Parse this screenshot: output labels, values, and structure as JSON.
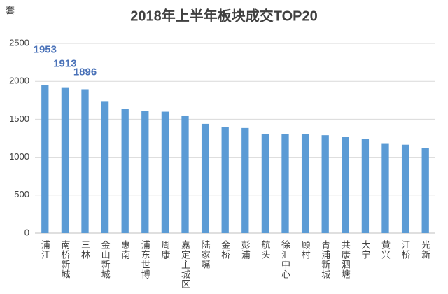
{
  "chart_data": {
    "type": "bar",
    "title": "2018年上半年板块成交TOP20",
    "y_label": "套",
    "categories": [
      "浦江",
      "南桥新城",
      "三林",
      "金山新城",
      "惠南",
      "浦东世博",
      "周康",
      "嘉定主城区",
      "陆家嘴",
      "金桥",
      "彭浦",
      "航头",
      "徐汇中心",
      "顾村",
      "青浦新城",
      "共康泗塘",
      "大宁",
      "黄兴",
      "江桥",
      "光新"
    ],
    "values": [
      1953,
      1913,
      1896,
      1740,
      1640,
      1610,
      1600,
      1550,
      1440,
      1395,
      1385,
      1310,
      1305,
      1305,
      1290,
      1270,
      1240,
      1185,
      1165,
      1125
    ],
    "value_labels": [
      "1953",
      "1913",
      "1896",
      null,
      null,
      null,
      null,
      null,
      null,
      null,
      null,
      null,
      null,
      null,
      null,
      null,
      null,
      null,
      null,
      null
    ],
    "color": "#5b9bd5",
    "label_color": "#4a72b8",
    "ylim": [
      0,
      2500
    ],
    "yticks": [
      0,
      500,
      1000,
      1500,
      2000,
      2500
    ],
    "grid": true
  }
}
